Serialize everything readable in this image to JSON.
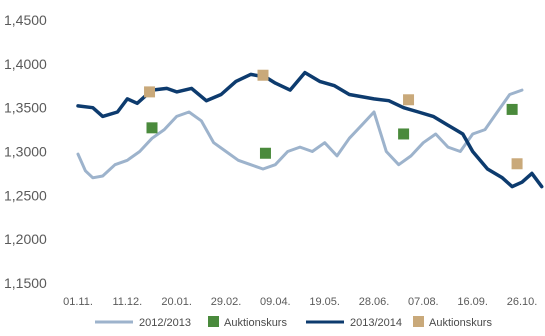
{
  "chart_data": {
    "type": "line",
    "title": "",
    "xlabel": "",
    "ylabel": "",
    "ylim": [
      1.15,
      1.45
    ],
    "y_ticks": [
      "1,4500",
      "1,4000",
      "1,3500",
      "1,3000",
      "1,2500",
      "1,2000",
      "1,1500"
    ],
    "y_tick_values": [
      1.45,
      1.4,
      1.35,
      1.3,
      1.25,
      1.2,
      1.15
    ],
    "x_ticks": [
      "01.11.",
      "11.12.",
      "20.01.",
      "29.02.",
      "09.04.",
      "19.05.",
      "28.06.",
      "07.08.",
      "16.09.",
      "26.10."
    ],
    "grid": false,
    "legend_position": "bottom",
    "series": [
      {
        "name": "2012/2013",
        "color": "#9db3cc",
        "kind": "line",
        "x_index": [
          0,
          0.15,
          0.3,
          0.5,
          0.75,
          1.0,
          1.25,
          1.5,
          1.75,
          2.0,
          2.25,
          2.5,
          2.75,
          3.0,
          3.25,
          3.5,
          3.75,
          4.0,
          4.25,
          4.5,
          4.75,
          5.0,
          5.25,
          5.5,
          5.75,
          6.0,
          6.25,
          6.5,
          6.75,
          7.0,
          7.25,
          7.5,
          7.75,
          8.0,
          8.25,
          8.5,
          8.75,
          9.0
        ],
        "values": [
          1.297,
          1.278,
          1.27,
          1.272,
          1.285,
          1.29,
          1.3,
          1.315,
          1.325,
          1.34,
          1.345,
          1.335,
          1.31,
          1.3,
          1.29,
          1.285,
          1.28,
          1.285,
          1.3,
          1.305,
          1.3,
          1.31,
          1.295,
          1.315,
          1.33,
          1.345,
          1.3,
          1.285,
          1.295,
          1.31,
          1.32,
          1.305,
          1.3,
          1.32,
          1.325,
          1.345,
          1.365,
          1.37
        ]
      },
      {
        "name": "Auktionskurs",
        "color": "#4a8a3c",
        "kind": "marker",
        "x_index": [
          1.5,
          3.8,
          6.6,
          8.8
        ],
        "values": [
          1.327,
          1.298,
          1.32,
          1.348
        ]
      },
      {
        "name": "2013/2014",
        "color": "#0d3b6e",
        "kind": "line",
        "x_index": [
          0,
          0.3,
          0.5,
          0.8,
          1.0,
          1.2,
          1.5,
          1.8,
          2.0,
          2.3,
          2.6,
          2.9,
          3.2,
          3.5,
          3.8,
          4.0,
          4.3,
          4.6,
          4.9,
          5.2,
          5.5,
          5.8,
          6.0,
          6.3,
          6.6,
          6.9,
          7.2,
          7.5,
          7.8,
          8.0,
          8.3,
          8.6,
          8.8,
          9.0,
          9.2,
          9.4
        ],
        "values": [
          1.352,
          1.35,
          1.34,
          1.345,
          1.36,
          1.355,
          1.37,
          1.372,
          1.368,
          1.372,
          1.358,
          1.365,
          1.38,
          1.388,
          1.385,
          1.378,
          1.37,
          1.39,
          1.38,
          1.375,
          1.365,
          1.362,
          1.36,
          1.358,
          1.35,
          1.345,
          1.34,
          1.33,
          1.32,
          1.3,
          1.28,
          1.27,
          1.26,
          1.265,
          1.275,
          1.26
        ]
      },
      {
        "name": "Auktionskurs",
        "color": "#c9a97a",
        "kind": "marker",
        "x_index": [
          1.45,
          3.75,
          6.7,
          8.9
        ],
        "values": [
          1.368,
          1.387,
          1.359,
          1.286
        ]
      }
    ]
  }
}
